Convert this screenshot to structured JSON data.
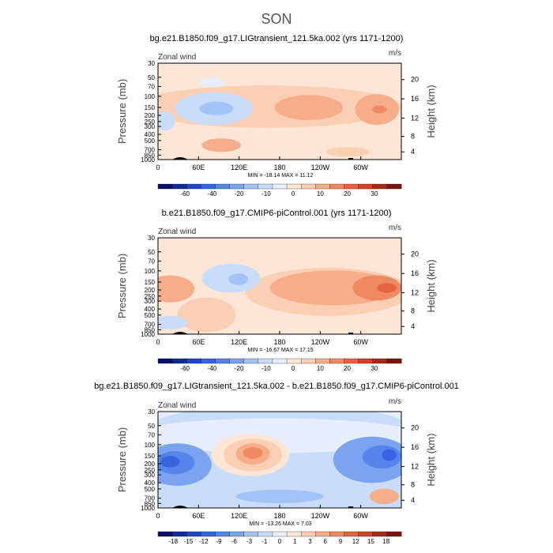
{
  "page_title": "SON",
  "chart_data": [
    {
      "type": "contour",
      "title": "bg.e21.B1850.f09_g17.LIGtransient_121.5ka.002 (yrs 1171-1200)",
      "field_label": "Zonal wind",
      "units": "m/s",
      "ylabel": "Pressure (mb)",
      "ylabel_right": "Height (km)",
      "pressure_ticks": [
        "30",
        "50",
        "70",
        "100",
        "150",
        "200",
        "250",
        "300",
        "400",
        "500",
        "700",
        "850",
        "1000"
      ],
      "height_ticks": [
        "20",
        "16",
        "12",
        "8",
        "4"
      ],
      "lon_ticks": [
        "0",
        "60E",
        "120E",
        "180",
        "120W",
        "60W"
      ],
      "stats": "MIN = -18.14   MAX =  11.12",
      "colorbar_labels": [
        "-60",
        "-40",
        "-20",
        "-10",
        "0",
        "10",
        "20",
        "30"
      ],
      "colorbar_colors": [
        "#08106e",
        "#0f2c9a",
        "#1f48c8",
        "#3566e0",
        "#5585ea",
        "#7aa3f0",
        "#a3c2f5",
        "#c9dcfa",
        "#e6eefc",
        "#fde6d6",
        "#fbcfb3",
        "#f7ad89",
        "#f08862",
        "#e3643f",
        "#cc4524",
        "#a52a13",
        "#7a1508"
      ]
    },
    {
      "type": "contour",
      "title": "b.e21.B1850.f09_g17.CMIP6-piControl.001 (yrs 1171-1200)",
      "field_label": "Zonal wind",
      "units": "m/s",
      "ylabel": "Pressure (mb)",
      "ylabel_right": "Height (km)",
      "pressure_ticks": [
        "30",
        "50",
        "70",
        "100",
        "150",
        "200",
        "250",
        "300",
        "400",
        "500",
        "700",
        "850",
        "1000"
      ],
      "height_ticks": [
        "20",
        "16",
        "12",
        "8",
        "4"
      ],
      "lon_ticks": [
        "0",
        "60E",
        "120E",
        "180",
        "120W",
        "60W"
      ],
      "stats": "MIN = -16.67   MAX =  17.15",
      "colorbar_labels": [
        "-60",
        "-40",
        "-20",
        "-10",
        "0",
        "10",
        "20",
        "30"
      ],
      "colorbar_colors": [
        "#08106e",
        "#0f2c9a",
        "#1f48c8",
        "#3566e0",
        "#5585ea",
        "#7aa3f0",
        "#a3c2f5",
        "#c9dcfa",
        "#e6eefc",
        "#fde6d6",
        "#fbcfb3",
        "#f7ad89",
        "#f08862",
        "#e3643f",
        "#cc4524",
        "#a52a13",
        "#7a1508"
      ]
    },
    {
      "type": "contour",
      "title": "bg.e21.B1850.f09_g17.LIGtransient_121.5ka.002 - b.e21.B1850.f09_g17.CMIP6-piControl.001",
      "field_label": "Zonal wind",
      "units": "m/s",
      "ylabel": "Pressure (mb)",
      "ylabel_right": "Height (km)",
      "pressure_ticks": [
        "30",
        "50",
        "70",
        "100",
        "150",
        "200",
        "250",
        "300",
        "400",
        "500",
        "700",
        "850",
        "1000"
      ],
      "height_ticks": [
        "20",
        "16",
        "12",
        "8",
        "4"
      ],
      "lon_ticks": [
        "0",
        "60E",
        "120E",
        "180",
        "120W",
        "60W"
      ],
      "stats": "MIN = -13.26   MAX =    7.03",
      "colorbar_labels": [
        "-18",
        "-15",
        "-12",
        "-9",
        "-6",
        "-3",
        "-1",
        "0",
        "1",
        "3",
        "6",
        "9",
        "12",
        "15",
        "18"
      ],
      "colorbar_colors": [
        "#08106e",
        "#0f2c9a",
        "#1f48c8",
        "#3566e0",
        "#5585ea",
        "#7aa3f0",
        "#a3c2f5",
        "#c9dcfa",
        "#e6eefc",
        "#fde6d6",
        "#fbcfb3",
        "#f7ad89",
        "#f08862",
        "#e3643f",
        "#cc4524",
        "#a52a13",
        "#7a1508"
      ]
    }
  ]
}
